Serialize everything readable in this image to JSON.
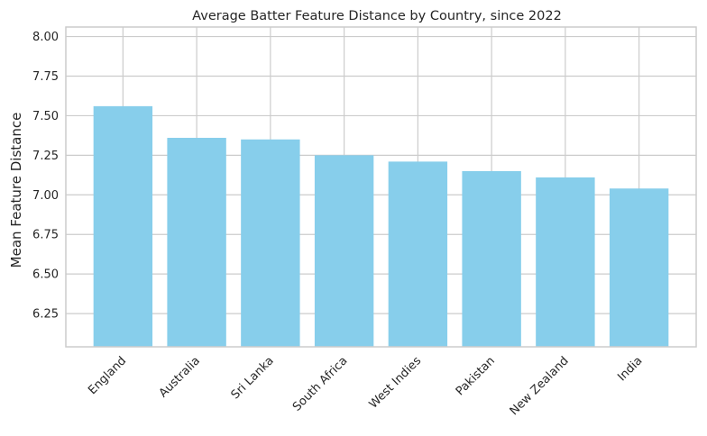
{
  "chart_data": {
    "type": "bar",
    "title": "Average Batter Feature Distance by Country, since 2022",
    "xlabel": "",
    "ylabel": "Mean Feature Distance",
    "categories": [
      "England",
      "Australia",
      "Sri Lanka",
      "South Africa",
      "West Indies",
      "Pakistan",
      "New Zealand",
      "India"
    ],
    "values": [
      7.56,
      7.36,
      7.35,
      7.25,
      7.21,
      7.15,
      7.11,
      7.04
    ],
    "ylim": [
      6.04,
      8.06
    ],
    "yticks": [
      "6.25",
      "6.50",
      "6.75",
      "7.00",
      "7.25",
      "7.50",
      "7.75",
      "8.00"
    ],
    "grid": true,
    "bar_color": "#87ceeb",
    "grid_color": "#cccccc",
    "spine_color": "#cccccc"
  }
}
